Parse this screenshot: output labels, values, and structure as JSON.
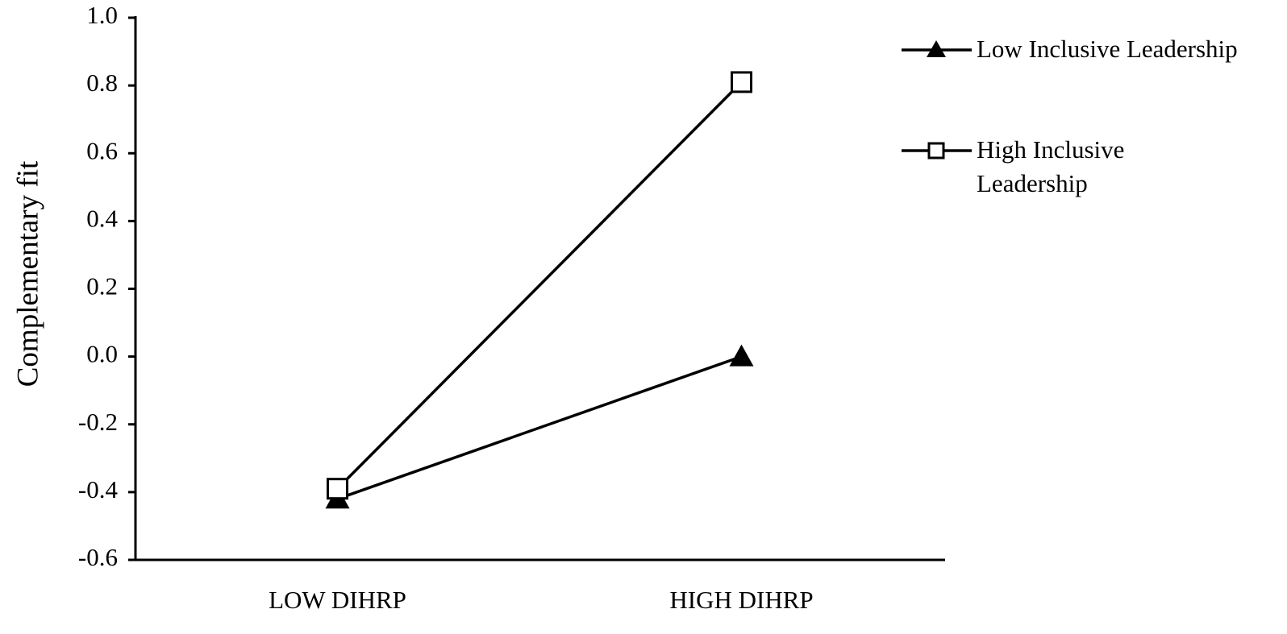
{
  "chart_data": {
    "type": "line",
    "y_label": "Complementary fit",
    "categories": [
      "LOW DIHRP",
      "HIGH DIHRP"
    ],
    "series": [
      {
        "name": "Low Inclusive Leadership",
        "color": "#000000",
        "marker": "triangle",
        "values": [
          -0.42,
          0.0
        ]
      },
      {
        "name": "High Inclusive Leadership",
        "color": "#000000",
        "marker": "square",
        "values": [
          -0.39,
          0.81
        ]
      }
    ],
    "ylim": [
      -0.6,
      1
    ],
    "yticks": [
      -0.6,
      -0.4,
      -0.2,
      {
        "value": 0,
        "label": "0.0"
      },
      0.2,
      0.4,
      0.6,
      0.8,
      {
        "value": 1,
        "label": "1.0"
      }
    ],
    "legend": "right"
  }
}
